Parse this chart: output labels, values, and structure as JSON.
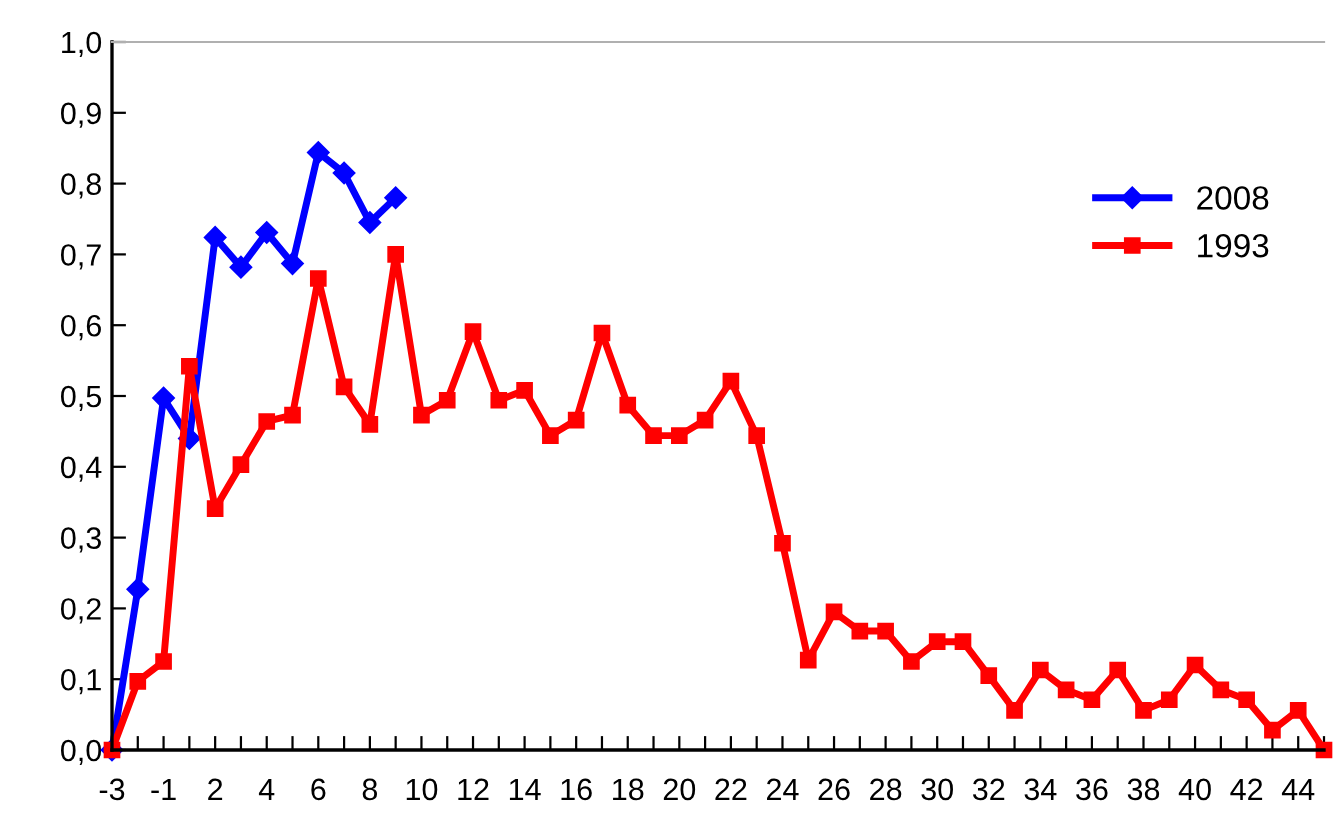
{
  "chart_data": {
    "type": "line",
    "categories": [
      "-3",
      null,
      "-1",
      null,
      "2",
      null,
      "4",
      null,
      "6",
      null,
      "8",
      null,
      "10",
      null,
      "12",
      null,
      "14",
      null,
      "16",
      null,
      "18",
      null,
      "20",
      null,
      "22",
      null,
      "24",
      null,
      "26",
      null,
      "28",
      null,
      "30",
      null,
      "32",
      null,
      "34",
      null,
      "36",
      null,
      "38",
      null,
      "40",
      null,
      "42",
      null,
      "44",
      null
    ],
    "series": [
      {
        "name": "2008",
        "color": "#0000ff",
        "marker": "diamond",
        "values": [
          0,
          0.227,
          0.497,
          0.44,
          0.724,
          0.682,
          0.731,
          0.687,
          0.844,
          0.815,
          0.745,
          0.78,
          null,
          null,
          null,
          null,
          null,
          null,
          null,
          null,
          null,
          null,
          null,
          null,
          null,
          null,
          null,
          null,
          null,
          null,
          null,
          null,
          null,
          null,
          null,
          null,
          null,
          null,
          null,
          null,
          null,
          null,
          null,
          null,
          null,
          null,
          null,
          null
        ]
      },
      {
        "name": "1993",
        "color": "#ff0000",
        "marker": "square",
        "values": [
          0,
          0.097,
          0.125,
          0.542,
          0.341,
          0.403,
          0.464,
          0.473,
          0.666,
          0.513,
          0.46,
          0.7,
          0.473,
          0.494,
          0.591,
          0.494,
          0.508,
          0.444,
          0.466,
          0.589,
          0.487,
          0.444,
          0.444,
          0.466,
          0.521,
          0.444,
          0.292,
          0.127,
          0.195,
          0.168,
          0.168,
          0.125,
          0.153,
          0.153,
          0.105,
          0.056,
          0.113,
          0.085,
          0.071,
          0.113,
          0.056,
          0.071,
          0.12,
          0.085,
          0.071,
          0.028,
          0.056,
          0
        ]
      }
    ],
    "ylim": [
      0,
      1
    ],
    "yticks": [
      {
        "value": 0,
        "label": "0,0"
      },
      {
        "value": 0.1,
        "label": "0,1"
      },
      {
        "value": 0.2,
        "label": "0,2"
      },
      {
        "value": 0.3,
        "label": "0,3"
      },
      {
        "value": 0.4,
        "label": "0,4"
      },
      {
        "value": 0.5,
        "label": "0,5"
      },
      {
        "value": 0.6,
        "label": "0,6"
      },
      {
        "value": 0.7,
        "label": "0,7"
      },
      {
        "value": 0.8,
        "label": "0,8"
      },
      {
        "value": 0.9,
        "label": "0,9"
      },
      {
        "value": 1,
        "label": "1,0"
      }
    ],
    "legend": "top right",
    "grid": false
  }
}
